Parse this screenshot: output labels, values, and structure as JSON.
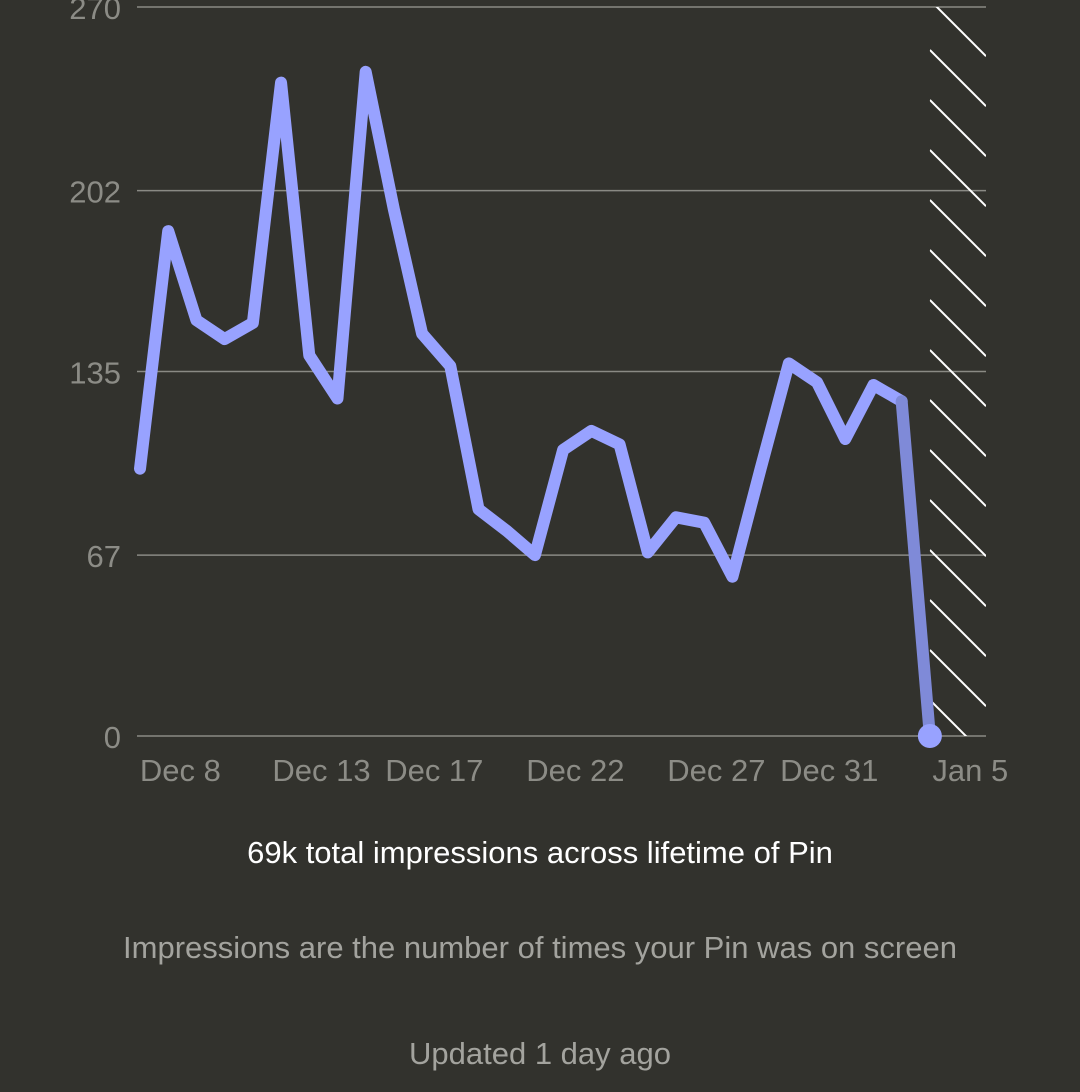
{
  "chart_data": {
    "type": "line",
    "title": "",
    "xlabel": "",
    "ylabel": "",
    "ylim": [
      0,
      270
    ],
    "y_ticks": [
      0,
      67,
      135,
      202,
      270
    ],
    "x_tick_labels": [
      {
        "label": "Dec 8",
        "date": "Dec 8"
      },
      {
        "label": "Dec 13",
        "date": "Dec 13"
      },
      {
        "label": "Dec 17",
        "date": "Dec 17"
      },
      {
        "label": "Dec 22",
        "date": "Dec 22"
      },
      {
        "label": "Dec 27",
        "date": "Dec 27"
      },
      {
        "label": "Dec 31",
        "date": "Dec 31"
      },
      {
        "label": "Jan 5",
        "date": "Jan 5"
      }
    ],
    "x": [
      "Dec 6",
      "Dec 7",
      "Dec 8",
      "Dec 9",
      "Dec 10",
      "Dec 11",
      "Dec 12",
      "Dec 13",
      "Dec 14",
      "Dec 15",
      "Dec 16",
      "Dec 17",
      "Dec 18",
      "Dec 19",
      "Dec 20",
      "Dec 21",
      "Dec 22",
      "Dec 23",
      "Dec 24",
      "Dec 25",
      "Dec 26",
      "Dec 27",
      "Dec 28",
      "Dec 29",
      "Dec 30",
      "Dec 31",
      "Jan 1",
      "Jan 2",
      "Jan 3"
    ],
    "series": [
      {
        "values": [
          99,
          187,
          154,
          147,
          153,
          242,
          141,
          125,
          246,
          195,
          149,
          137,
          84,
          76,
          67,
          106,
          113,
          108,
          68,
          81,
          79,
          59,
          99,
          138,
          131,
          110,
          130,
          124,
          0
        ]
      }
    ],
    "partial_last_point": true,
    "hatched_region": [
      "Jan 3",
      "Jan 5"
    ],
    "grid": true,
    "colors": {
      "line": "#98a2ff",
      "partial_line": "#7f8ad8",
      "grid": "#8a8a84",
      "tick_text": "#8c8c86",
      "background": "#32322d",
      "hatch": "#ffffff"
    }
  },
  "summary": {
    "total": "69k total impressions across lifetime of Pin",
    "description": "Impressions are the number of times your Pin was on screen",
    "updated": "Updated 1 day ago"
  }
}
